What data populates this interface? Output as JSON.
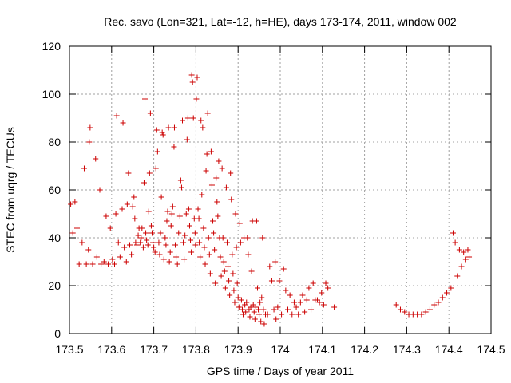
{
  "chart_data": {
    "type": "scatter",
    "title": "Rec. savo (Lon=321, Lat=-12, h=HE), days 173-174, 2011, window 002",
    "xlabel": "GPS time / Days of year 2011",
    "ylabel": "STEC from uqrg / TECUs",
    "xlim": [
      173.5,
      174.5
    ],
    "ylim": [
      0,
      120
    ],
    "xticks": [
      173.5,
      173.6,
      173.7,
      173.8,
      173.9,
      174.0,
      174.1,
      174.2,
      174.3,
      174.4,
      174.5
    ],
    "xtick_labels": [
      "173.5",
      "173.6",
      "173.7",
      "173.8",
      "173.9",
      "174",
      "174.1",
      "174.2",
      "174.3",
      "174.4",
      "174.5"
    ],
    "yticks": [
      0,
      20,
      40,
      60,
      80,
      100,
      120
    ],
    "ytick_labels": [
      "0",
      "20",
      "40",
      "60",
      "80",
      "100",
      "120"
    ],
    "grid": true,
    "marker": "+",
    "color": "#cc0000",
    "series": [
      {
        "points": [
          [
            173.503,
            54
          ],
          [
            173.508,
            42
          ],
          [
            173.513,
            55
          ],
          [
            173.518,
            44
          ],
          [
            173.523,
            29
          ],
          [
            173.53,
            38
          ],
          [
            173.535,
            69
          ],
          [
            173.54,
            29
          ],
          [
            173.545,
            35
          ],
          [
            173.547,
            80
          ],
          [
            173.549,
            86
          ],
          [
            173.555,
            29
          ],
          [
            173.562,
            73
          ],
          [
            173.565,
            32
          ],
          [
            173.572,
            60
          ],
          [
            173.575,
            29
          ],
          [
            173.582,
            30
          ],
          [
            173.587,
            49
          ],
          [
            173.592,
            29
          ],
          [
            173.597,
            44
          ],
          [
            173.602,
            31
          ],
          [
            173.607,
            29
          ],
          [
            173.61,
            50
          ],
          [
            173.612,
            91
          ],
          [
            173.616,
            38
          ],
          [
            173.62,
            32
          ],
          [
            173.625,
            52
          ],
          [
            173.627,
            88
          ],
          [
            173.63,
            36
          ],
          [
            173.635,
            30
          ],
          [
            173.637,
            54
          ],
          [
            173.64,
            67
          ],
          [
            173.643,
            37
          ],
          [
            173.647,
            33
          ],
          [
            173.65,
            53
          ],
          [
            173.653,
            57
          ],
          [
            173.655,
            48
          ],
          [
            173.657,
            38
          ],
          [
            173.66,
            37
          ],
          [
            173.663,
            41
          ],
          [
            173.665,
            44
          ],
          [
            173.668,
            38
          ],
          [
            173.67,
            40
          ],
          [
            173.672,
            44
          ],
          [
            173.675,
            36
          ],
          [
            173.677,
            63
          ],
          [
            173.679,
            98
          ],
          [
            173.681,
            42
          ],
          [
            173.683,
            39
          ],
          [
            173.686,
            37
          ],
          [
            173.688,
            51
          ],
          [
            173.69,
            67
          ],
          [
            173.692,
            92
          ],
          [
            173.694,
            45
          ],
          [
            173.696,
            42
          ],
          [
            173.698,
            38
          ],
          [
            173.7,
            36
          ],
          [
            173.703,
            34
          ],
          [
            173.705,
            69
          ],
          [
            173.707,
            85
          ],
          [
            173.709,
            76
          ],
          [
            173.712,
            38
          ],
          [
            173.714,
            33
          ],
          [
            173.716,
            42
          ],
          [
            173.718,
            57
          ],
          [
            173.72,
            84
          ],
          [
            173.722,
            83
          ],
          [
            173.724,
            31
          ],
          [
            173.727,
            40
          ],
          [
            173.729,
            37
          ],
          [
            173.731,
            47
          ],
          [
            173.733,
            51
          ],
          [
            173.735,
            86
          ],
          [
            173.737,
            30
          ],
          [
            173.739,
            34
          ],
          [
            173.741,
            45
          ],
          [
            173.743,
            50
          ],
          [
            173.745,
            53
          ],
          [
            173.748,
            78
          ],
          [
            173.749,
            86
          ],
          [
            173.751,
            37
          ],
          [
            173.753,
            32
          ],
          [
            173.756,
            29
          ],
          [
            173.759,
            42
          ],
          [
            173.762,
            49
          ],
          [
            173.764,
            64
          ],
          [
            173.766,
            61
          ],
          [
            173.768,
            89
          ],
          [
            173.77,
            38
          ],
          [
            173.772,
            31
          ],
          [
            173.774,
            41
          ],
          [
            173.777,
            50
          ],
          [
            173.779,
            81
          ],
          [
            173.781,
            90
          ],
          [
            173.783,
            52
          ],
          [
            173.785,
            45
          ],
          [
            173.787,
            39
          ],
          [
            173.789,
            34
          ],
          [
            173.79,
            108
          ],
          [
            173.792,
            105
          ],
          [
            173.794,
            90
          ],
          [
            173.796,
            48
          ],
          [
            173.798,
            42
          ],
          [
            173.799,
            37
          ],
          [
            173.801,
            98
          ],
          [
            173.803,
            107
          ],
          [
            173.805,
            52
          ],
          [
            173.807,
            48
          ],
          [
            173.808,
            38
          ],
          [
            173.81,
            32
          ],
          [
            173.812,
            89
          ],
          [
            173.814,
            58
          ],
          [
            173.816,
            86
          ],
          [
            173.818,
            44
          ],
          [
            173.82,
            36
          ],
          [
            173.822,
            29
          ],
          [
            173.824,
            68
          ],
          [
            173.826,
            75
          ],
          [
            173.828,
            92
          ],
          [
            173.83,
            40
          ],
          [
            173.832,
            33
          ],
          [
            173.834,
            25
          ],
          [
            173.836,
            76
          ],
          [
            173.838,
            62
          ],
          [
            173.84,
            47
          ],
          [
            173.842,
            42
          ],
          [
            173.844,
            35
          ],
          [
            173.846,
            21
          ],
          [
            173.848,
            65
          ],
          [
            173.85,
            55
          ],
          [
            173.852,
            49
          ],
          [
            173.854,
            72
          ],
          [
            173.856,
            40
          ],
          [
            173.858,
            32
          ],
          [
            173.86,
            24
          ],
          [
            173.862,
            69
          ],
          [
            173.864,
            40
          ],
          [
            173.866,
            30
          ],
          [
            173.868,
            26
          ],
          [
            173.87,
            19
          ],
          [
            173.872,
            61
          ],
          [
            173.874,
            38
          ],
          [
            173.876,
            28
          ],
          [
            173.878,
            22
          ],
          [
            173.88,
            16
          ],
          [
            173.882,
            67
          ],
          [
            173.884,
            56
          ],
          [
            173.886,
            33
          ],
          [
            173.888,
            25
          ],
          [
            173.89,
            18
          ],
          [
            173.892,
            13
          ],
          [
            173.894,
            50
          ],
          [
            173.896,
            36
          ],
          [
            173.898,
            21
          ],
          [
            173.9,
            15
          ],
          [
            173.902,
            11
          ],
          [
            173.904,
            46
          ],
          [
            173.906,
            38
          ],
          [
            173.908,
            14
          ],
          [
            173.91,
            10
          ],
          [
            173.912,
            8
          ],
          [
            173.914,
            40
          ],
          [
            173.916,
            12
          ],
          [
            173.918,
            9
          ],
          [
            173.92,
            13
          ],
          [
            173.922,
            40
          ],
          [
            173.924,
            33
          ],
          [
            173.926,
            10
          ],
          [
            173.928,
            7
          ],
          [
            173.93,
            11
          ],
          [
            173.932,
            26
          ],
          [
            173.934,
            47
          ],
          [
            173.936,
            12
          ],
          [
            173.938,
            9
          ],
          [
            173.94,
            6
          ],
          [
            173.942,
            11
          ],
          [
            173.944,
            47
          ],
          [
            173.946,
            19
          ],
          [
            173.948,
            10
          ],
          [
            173.95,
            8
          ],
          [
            173.952,
            13
          ],
          [
            173.954,
            5
          ],
          [
            173.956,
            15
          ],
          [
            173.958,
            40
          ],
          [
            173.96,
            10
          ],
          [
            173.962,
            4
          ],
          [
            173.965,
            8
          ],
          [
            173.97,
            8
          ],
          [
            173.975,
            28
          ],
          [
            173.98,
            22
          ],
          [
            173.985,
            10
          ],
          [
            173.988,
            30
          ],
          [
            173.99,
            6
          ],
          [
            173.994,
            11
          ],
          [
            173.998,
            22
          ],
          [
            174.003,
            8
          ],
          [
            174.008,
            27
          ],
          [
            174.013,
            18
          ],
          [
            174.018,
            10
          ],
          [
            174.023,
            16
          ],
          [
            174.028,
            8
          ],
          [
            174.033,
            13
          ],
          [
            174.038,
            11
          ],
          [
            174.043,
            8
          ],
          [
            174.048,
            13
          ],
          [
            174.053,
            16
          ],
          [
            174.058,
            9
          ],
          [
            174.063,
            14
          ],
          [
            174.068,
            19
          ],
          [
            174.073,
            10
          ],
          [
            174.078,
            21
          ],
          [
            174.083,
            14
          ],
          [
            174.088,
            14
          ],
          [
            174.093,
            13
          ],
          [
            174.098,
            17
          ],
          [
            174.103,
            12
          ],
          [
            174.108,
            21
          ],
          [
            174.113,
            19
          ],
          [
            174.128,
            11
          ],
          [
            174.275,
            12
          ],
          [
            174.285,
            10
          ],
          [
            174.295,
            9
          ],
          [
            174.305,
            8
          ],
          [
            174.315,
            8
          ],
          [
            174.325,
            8
          ],
          [
            174.335,
            8
          ],
          [
            174.345,
            9
          ],
          [
            174.355,
            10
          ],
          [
            174.365,
            12
          ],
          [
            174.375,
            13
          ],
          [
            174.385,
            15
          ],
          [
            174.395,
            17
          ],
          [
            174.405,
            19
          ],
          [
            174.41,
            42
          ],
          [
            174.415,
            38
          ],
          [
            174.42,
            24
          ],
          [
            174.425,
            35
          ],
          [
            174.43,
            28
          ],
          [
            174.435,
            34
          ],
          [
            174.44,
            31
          ],
          [
            174.445,
            35
          ],
          [
            174.448,
            32
          ]
        ]
      }
    ]
  }
}
